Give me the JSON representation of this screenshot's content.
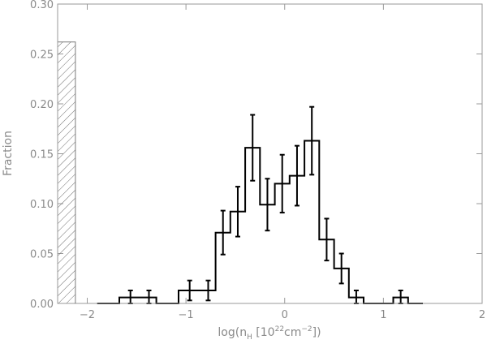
{
  "chart_data": {
    "type": "bar",
    "subtype": "step-histogram with error bars",
    "xlabel_parts": {
      "prefix": "log(n",
      "sub": "H",
      "mid": " [10",
      "sup1": "22",
      "unit": "cm",
      "sup2": "−2",
      "suffix": "])"
    },
    "ylabel": "Fraction",
    "xlim": [
      -2.3,
      2.0
    ],
    "ylim": [
      0.0,
      0.3
    ],
    "x_ticks": [
      -2,
      -1,
      0,
      1,
      2
    ],
    "x_tick_labels": [
      "−2",
      "−1",
      "0",
      "1",
      "2"
    ],
    "y_ticks": [
      0.0,
      0.05,
      0.1,
      0.15,
      0.2,
      0.25,
      0.3
    ],
    "y_tick_labels": [
      "0.00",
      "0.05",
      "0.10",
      "0.15",
      "0.20",
      "0.25",
      "0.30"
    ],
    "hatched_bar": {
      "x0": -2.3,
      "x1": -2.12,
      "value": 0.262
    },
    "bin_width": 0.15,
    "bins": [
      {
        "x0": -1.9,
        "value": 0.0,
        "err": 0
      },
      {
        "x0": -1.75,
        "value": 0.0,
        "err": 0
      },
      {
        "x0": -1.675,
        "value": 0.006,
        "err": 0.007
      },
      {
        "x0": -1.45,
        "value": 0.006,
        "err": 0.007
      },
      {
        "x0": -1.3,
        "value": 0.0,
        "err": 0
      },
      {
        "x0": -1.075,
        "value": 0.013,
        "err": 0.01
      },
      {
        "x0": -0.85,
        "value": 0.013,
        "err": 0.01
      },
      {
        "x0": -0.7,
        "value": 0.071,
        "err": 0.022
      },
      {
        "x0": -0.55,
        "value": 0.092,
        "err": 0.025
      },
      {
        "x0": -0.4,
        "value": 0.156,
        "err": 0.033
      },
      {
        "x0": -0.25,
        "value": 0.099,
        "err": 0.026
      },
      {
        "x0": -0.1,
        "value": 0.12,
        "err": 0.029
      },
      {
        "x0": 0.05,
        "value": 0.128,
        "err": 0.03
      },
      {
        "x0": 0.2,
        "value": 0.163,
        "err": 0.034
      },
      {
        "x0": 0.35,
        "value": 0.064,
        "err": 0.021
      },
      {
        "x0": 0.5,
        "value": 0.035,
        "err": 0.015
      },
      {
        "x0": 0.65,
        "value": 0.006,
        "err": 0.007
      },
      {
        "x0": 0.8,
        "value": 0.0,
        "err": 0
      },
      {
        "x0": 0.95,
        "value": 0.0,
        "err": 0
      },
      {
        "x0": 1.1,
        "value": 0.006,
        "err": 0.007
      },
      {
        "x0": 1.25,
        "value": 0.0,
        "err": 0
      }
    ],
    "grid": false,
    "legend": "none"
  }
}
